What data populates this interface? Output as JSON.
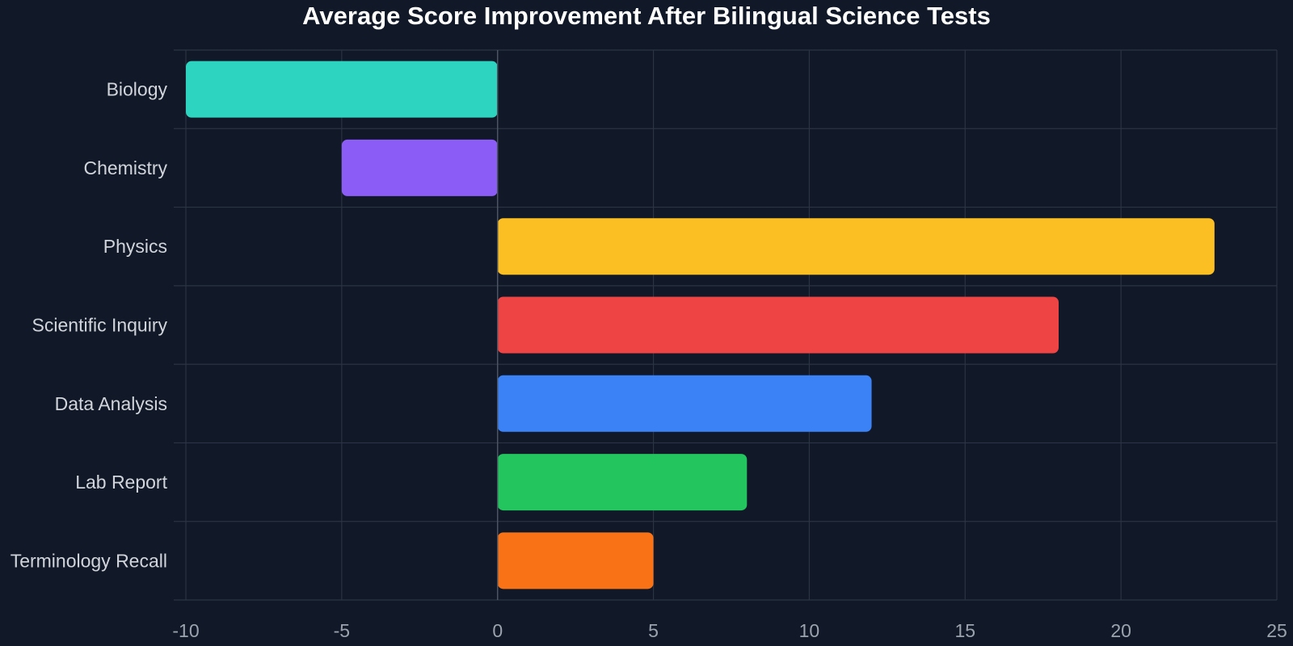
{
  "colors": {
    "background": "#111827",
    "grid": "#2b3444",
    "title": "#ffffff",
    "category_label": "#d1d5db",
    "tick_label": "#9ca3af",
    "zero_line": "#4b5563"
  },
  "chart_data": {
    "type": "bar",
    "orientation": "horizontal",
    "title": "Average Score Improvement After Bilingual Science Tests",
    "xlabel": "",
    "ylabel": "",
    "categories": [
      "Biology",
      "Chemistry",
      "Physics",
      "Scientific Inquiry",
      "Data Analysis",
      "Lab Report",
      "Terminology Recall"
    ],
    "values": [
      -10,
      -5,
      23,
      18,
      12,
      8,
      5
    ],
    "bar_colors": [
      "#2dd4bf",
      "#8b5cf6",
      "#fbbf24",
      "#ef4444",
      "#3b82f6",
      "#22c55e",
      "#f97316"
    ],
    "xlim": [
      -10,
      25
    ],
    "xticks": [
      -10,
      -5,
      0,
      5,
      10,
      15,
      20,
      25
    ],
    "grid": true,
    "legend": "none"
  }
}
